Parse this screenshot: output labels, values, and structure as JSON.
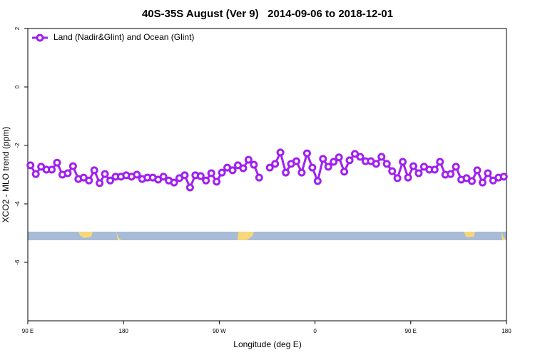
{
  "chart_data": {
    "type": "line",
    "title": "40S-35S August (Ver 9)   2014-09-06 to 2018-12-01",
    "xlabel": "Longitude (deg E)",
    "ylabel": "XCO2 - MLO trend (ppm)",
    "xlim": [
      90,
      540
    ],
    "xticks": [
      {
        "value": 90,
        "label": "90 E"
      },
      180,
      {
        "value": 270,
        "label": "90 W"
      },
      {
        "value": 360,
        "label": "0"
      },
      {
        "value": 450,
        "label": "90 E"
      },
      {
        "value": 540,
        "label": "180"
      }
    ],
    "ylim": [
      -8,
      2
    ],
    "yticks": [
      -6,
      -4,
      -2,
      0,
      2
    ],
    "legend": "top-left",
    "x": [
      92.5,
      97.5,
      102.5,
      107.5,
      112.5,
      117.5,
      122.5,
      127.5,
      132.5,
      137.5,
      142.5,
      147.5,
      152.5,
      157.5,
      162.5,
      167.5,
      172.5,
      177.5,
      182.5,
      187.5,
      192.5,
      197.5,
      202.5,
      207.5,
      212.5,
      217.5,
      222.5,
      227.5,
      232.5,
      237.5,
      242.5,
      247.5,
      252.5,
      257.5,
      262.5,
      267.5,
      272.5,
      277.5,
      282.5,
      287.5,
      292.5,
      297.5,
      302.5,
      307.5,
      312.5,
      317.5,
      322.5,
      327.5,
      332.5,
      337.5,
      342.5,
      347.5,
      352.5,
      357.5,
      362.5,
      367.5,
      372.5,
      377.5,
      382.5,
      387.5,
      392.5,
      397.5,
      402.5,
      407.5,
      412.5,
      417.5,
      422.5,
      427.5,
      432.5,
      437.5,
      442.5,
      447.5,
      452.5,
      457.5,
      462.5,
      467.5,
      472.5,
      477.5,
      482.5,
      487.5,
      492.5,
      497.5,
      502.5,
      507.5,
      512.5,
      517.5,
      522.5,
      527.5,
      532.5,
      537.5
    ],
    "series": [
      {
        "name": "Land (Nadir&Glint) and Ocean (Glint)",
        "color": "#a020f0",
        "values": [
          -2.68,
          -2.98,
          -2.73,
          -2.83,
          -2.83,
          -2.59,
          -3.0,
          -2.95,
          -2.71,
          -3.15,
          -3.1,
          -3.2,
          -2.85,
          -3.29,
          -2.98,
          -3.2,
          -3.07,
          -3.07,
          -3.02,
          -3.07,
          -3.0,
          -3.15,
          -3.1,
          -3.1,
          -3.17,
          -3.07,
          -3.2,
          -3.27,
          -3.12,
          -3.02,
          -3.44,
          -3.02,
          -3.05,
          -3.2,
          -2.95,
          -3.24,
          -2.93,
          -2.76,
          -2.85,
          -2.68,
          -2.78,
          -2.49,
          -2.66,
          -3.1,
          null,
          -2.76,
          -2.63,
          -2.24,
          -2.93,
          -2.63,
          -2.54,
          -2.93,
          -2.27,
          -2.76,
          -3.22,
          -2.46,
          -2.73,
          -2.56,
          -2.41,
          -2.9,
          -2.51,
          -2.29,
          -2.39,
          -2.54,
          -2.54,
          -2.63,
          -2.39,
          -2.63,
          -2.88,
          -3.12,
          -2.56,
          -3.1,
          -2.71,
          -2.95,
          -2.73,
          -2.83,
          -2.83,
          -2.56,
          -3.0,
          -2.98,
          -2.73,
          -3.17,
          -3.12,
          -3.22,
          -2.85,
          -3.27,
          -2.95,
          -3.2,
          -3.1,
          -3.07
        ]
      }
    ]
  }
}
